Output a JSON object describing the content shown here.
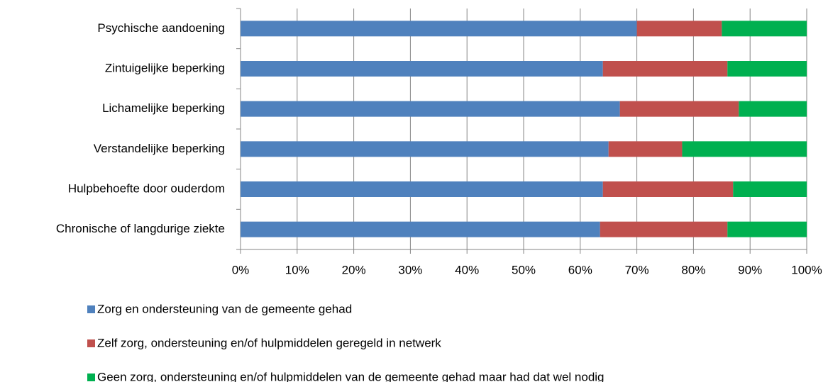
{
  "chart_data": {
    "type": "stacked-barh",
    "categories": [
      "Psychische aandoening",
      "Zintuigelijke beperking",
      "Lichamelijke beperking",
      "Verstandelijke beperking",
      "Hulpbehoefte door ouderdom",
      "Chronische of langdurige ziekte"
    ],
    "series": [
      {
        "name": "Zorg en ondersteuning van de gemeente gehad",
        "color": "#4f81bd",
        "values": [
          70,
          64,
          67,
          65,
          64,
          63.5
        ]
      },
      {
        "name": "Zelf zorg, ondersteuning en/of hulpmiddelen geregeld in netwerk",
        "color": "#c0504d",
        "values": [
          15,
          22,
          21,
          13,
          23,
          22.5
        ]
      },
      {
        "name": "Geen zorg, ondersteuning en/of hulpmiddelen van de gemeente gehad maar had dat wel nodig",
        "color": "#00b050",
        "values": [
          15,
          14,
          12,
          22,
          13,
          14
        ]
      }
    ],
    "xlim": [
      0,
      100
    ],
    "xticks": [
      {
        "value": 0,
        "label": "0%"
      },
      {
        "value": 10,
        "label": "10%"
      },
      {
        "value": 20,
        "label": "20%"
      },
      {
        "value": 30,
        "label": "30%"
      },
      {
        "value": 40,
        "label": "40%"
      },
      {
        "value": 50,
        "label": "50%"
      },
      {
        "value": 60,
        "label": "60%"
      },
      {
        "value": 70,
        "label": "70%"
      },
      {
        "value": 80,
        "label": "80%"
      },
      {
        "value": 90,
        "label": "90%"
      },
      {
        "value": 100,
        "label": "100%"
      }
    ],
    "grid": true,
    "legend": "bottom"
  }
}
